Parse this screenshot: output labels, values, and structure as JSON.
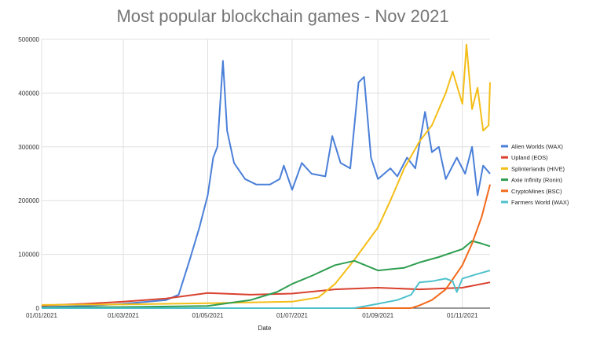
{
  "chart_data": {
    "type": "line",
    "title": "Most popular blockchain games - Nov 2021",
    "xlabel": "Date",
    "ylabel": "",
    "x_ticks": [
      "01/01/2021",
      "01/03/2021",
      "01/05/2021",
      "01/07/2021",
      "01/09/2021",
      "01/11/2021"
    ],
    "y_ticks": [
      "0",
      "100000",
      "200000",
      "300000",
      "400000",
      "500000"
    ],
    "ylim": [
      0,
      500000
    ],
    "xlim": [
      "2021-01-01",
      "2021-11-21"
    ],
    "grid": true,
    "legend_position": "right",
    "series": [
      {
        "name": "Alien Worlds (WAX)",
        "color": "#4A7FD8",
        "points": [
          [
            "2021-01-01",
            2000
          ],
          [
            "2021-02-01",
            4000
          ],
          [
            "2021-03-01",
            8000
          ],
          [
            "2021-04-01",
            15000
          ],
          [
            "2021-04-10",
            25000
          ],
          [
            "2021-04-18",
            90000
          ],
          [
            "2021-04-25",
            150000
          ],
          [
            "2021-05-01",
            210000
          ],
          [
            "2021-05-05",
            280000
          ],
          [
            "2021-05-08",
            300000
          ],
          [
            "2021-05-12",
            460000
          ],
          [
            "2021-05-15",
            330000
          ],
          [
            "2021-05-20",
            270000
          ],
          [
            "2021-05-28",
            240000
          ],
          [
            "2021-06-05",
            230000
          ],
          [
            "2021-06-15",
            230000
          ],
          [
            "2021-06-22",
            240000
          ],
          [
            "2021-06-25",
            265000
          ],
          [
            "2021-07-01",
            220000
          ],
          [
            "2021-07-08",
            270000
          ],
          [
            "2021-07-15",
            250000
          ],
          [
            "2021-07-25",
            245000
          ],
          [
            "2021-07-30",
            320000
          ],
          [
            "2021-08-05",
            270000
          ],
          [
            "2021-08-12",
            260000
          ],
          [
            "2021-08-18",
            420000
          ],
          [
            "2021-08-22",
            430000
          ],
          [
            "2021-08-27",
            280000
          ],
          [
            "2021-09-01",
            240000
          ],
          [
            "2021-09-10",
            260000
          ],
          [
            "2021-09-15",
            245000
          ],
          [
            "2021-09-22",
            280000
          ],
          [
            "2021-09-28",
            260000
          ],
          [
            "2021-10-05",
            365000
          ],
          [
            "2021-10-10",
            290000
          ],
          [
            "2021-10-15",
            300000
          ],
          [
            "2021-10-20",
            240000
          ],
          [
            "2021-10-28",
            280000
          ],
          [
            "2021-11-03",
            250000
          ],
          [
            "2021-11-08",
            300000
          ],
          [
            "2021-11-12",
            210000
          ],
          [
            "2021-11-16",
            265000
          ],
          [
            "2021-11-21",
            250000
          ]
        ]
      },
      {
        "name": "Upland (EOS)",
        "color": "#D9412E",
        "points": [
          [
            "2021-01-01",
            5000
          ],
          [
            "2021-02-01",
            8000
          ],
          [
            "2021-03-01",
            12000
          ],
          [
            "2021-04-01",
            18000
          ],
          [
            "2021-05-01",
            28000
          ],
          [
            "2021-06-01",
            25000
          ],
          [
            "2021-07-01",
            27000
          ],
          [
            "2021-08-01",
            35000
          ],
          [
            "2021-09-01",
            38000
          ],
          [
            "2021-10-01",
            35000
          ],
          [
            "2021-11-01",
            38000
          ],
          [
            "2021-11-21",
            48000
          ]
        ]
      },
      {
        "name": "Splinterlands  (HIVE)",
        "color": "#F4BE18",
        "points": [
          [
            "2021-01-01",
            6000
          ],
          [
            "2021-03-01",
            7000
          ],
          [
            "2021-05-01",
            9000
          ],
          [
            "2021-07-01",
            12000
          ],
          [
            "2021-07-20",
            20000
          ],
          [
            "2021-08-01",
            45000
          ],
          [
            "2021-08-15",
            90000
          ],
          [
            "2021-09-01",
            150000
          ],
          [
            "2021-09-10",
            200000
          ],
          [
            "2021-09-20",
            260000
          ],
          [
            "2021-10-01",
            310000
          ],
          [
            "2021-10-10",
            340000
          ],
          [
            "2021-10-20",
            400000
          ],
          [
            "2021-10-25",
            440000
          ],
          [
            "2021-11-01",
            380000
          ],
          [
            "2021-11-04",
            490000
          ],
          [
            "2021-11-08",
            370000
          ],
          [
            "2021-11-12",
            410000
          ],
          [
            "2021-11-16",
            330000
          ],
          [
            "2021-11-20",
            340000
          ],
          [
            "2021-11-21",
            420000
          ]
        ]
      },
      {
        "name": "Axie Infinity (Ronin)",
        "color": "#2E9E50",
        "points": [
          [
            "2021-01-01",
            1000
          ],
          [
            "2021-03-01",
            2000
          ],
          [
            "2021-05-01",
            4000
          ],
          [
            "2021-06-01",
            15000
          ],
          [
            "2021-06-20",
            30000
          ],
          [
            "2021-07-01",
            45000
          ],
          [
            "2021-07-15",
            60000
          ],
          [
            "2021-08-01",
            80000
          ],
          [
            "2021-08-15",
            88000
          ],
          [
            "2021-09-01",
            70000
          ],
          [
            "2021-09-20",
            75000
          ],
          [
            "2021-10-01",
            85000
          ],
          [
            "2021-10-15",
            95000
          ],
          [
            "2021-11-01",
            110000
          ],
          [
            "2021-11-08",
            125000
          ],
          [
            "2021-11-15",
            120000
          ],
          [
            "2021-11-21",
            115000
          ]
        ]
      },
      {
        "name": "CryptoMines (BSC)",
        "color": "#F26A1B",
        "points": [
          [
            "2021-01-01",
            0
          ],
          [
            "2021-09-25",
            0
          ],
          [
            "2021-10-01",
            5000
          ],
          [
            "2021-10-10",
            15000
          ],
          [
            "2021-10-20",
            35000
          ],
          [
            "2021-11-01",
            80000
          ],
          [
            "2021-11-08",
            120000
          ],
          [
            "2021-11-15",
            170000
          ],
          [
            "2021-11-21",
            230000
          ]
        ]
      },
      {
        "name": "Farmers World (WAX)",
        "color": "#4EC1CC",
        "points": [
          [
            "2021-01-01",
            0
          ],
          [
            "2021-08-15",
            0
          ],
          [
            "2021-09-01",
            8000
          ],
          [
            "2021-09-15",
            15000
          ],
          [
            "2021-09-25",
            25000
          ],
          [
            "2021-10-01",
            48000
          ],
          [
            "2021-10-10",
            50000
          ],
          [
            "2021-10-20",
            55000
          ],
          [
            "2021-10-25",
            50000
          ],
          [
            "2021-10-28",
            30000
          ],
          [
            "2021-11-01",
            55000
          ],
          [
            "2021-11-10",
            62000
          ],
          [
            "2021-11-21",
            70000
          ]
        ]
      }
    ]
  }
}
